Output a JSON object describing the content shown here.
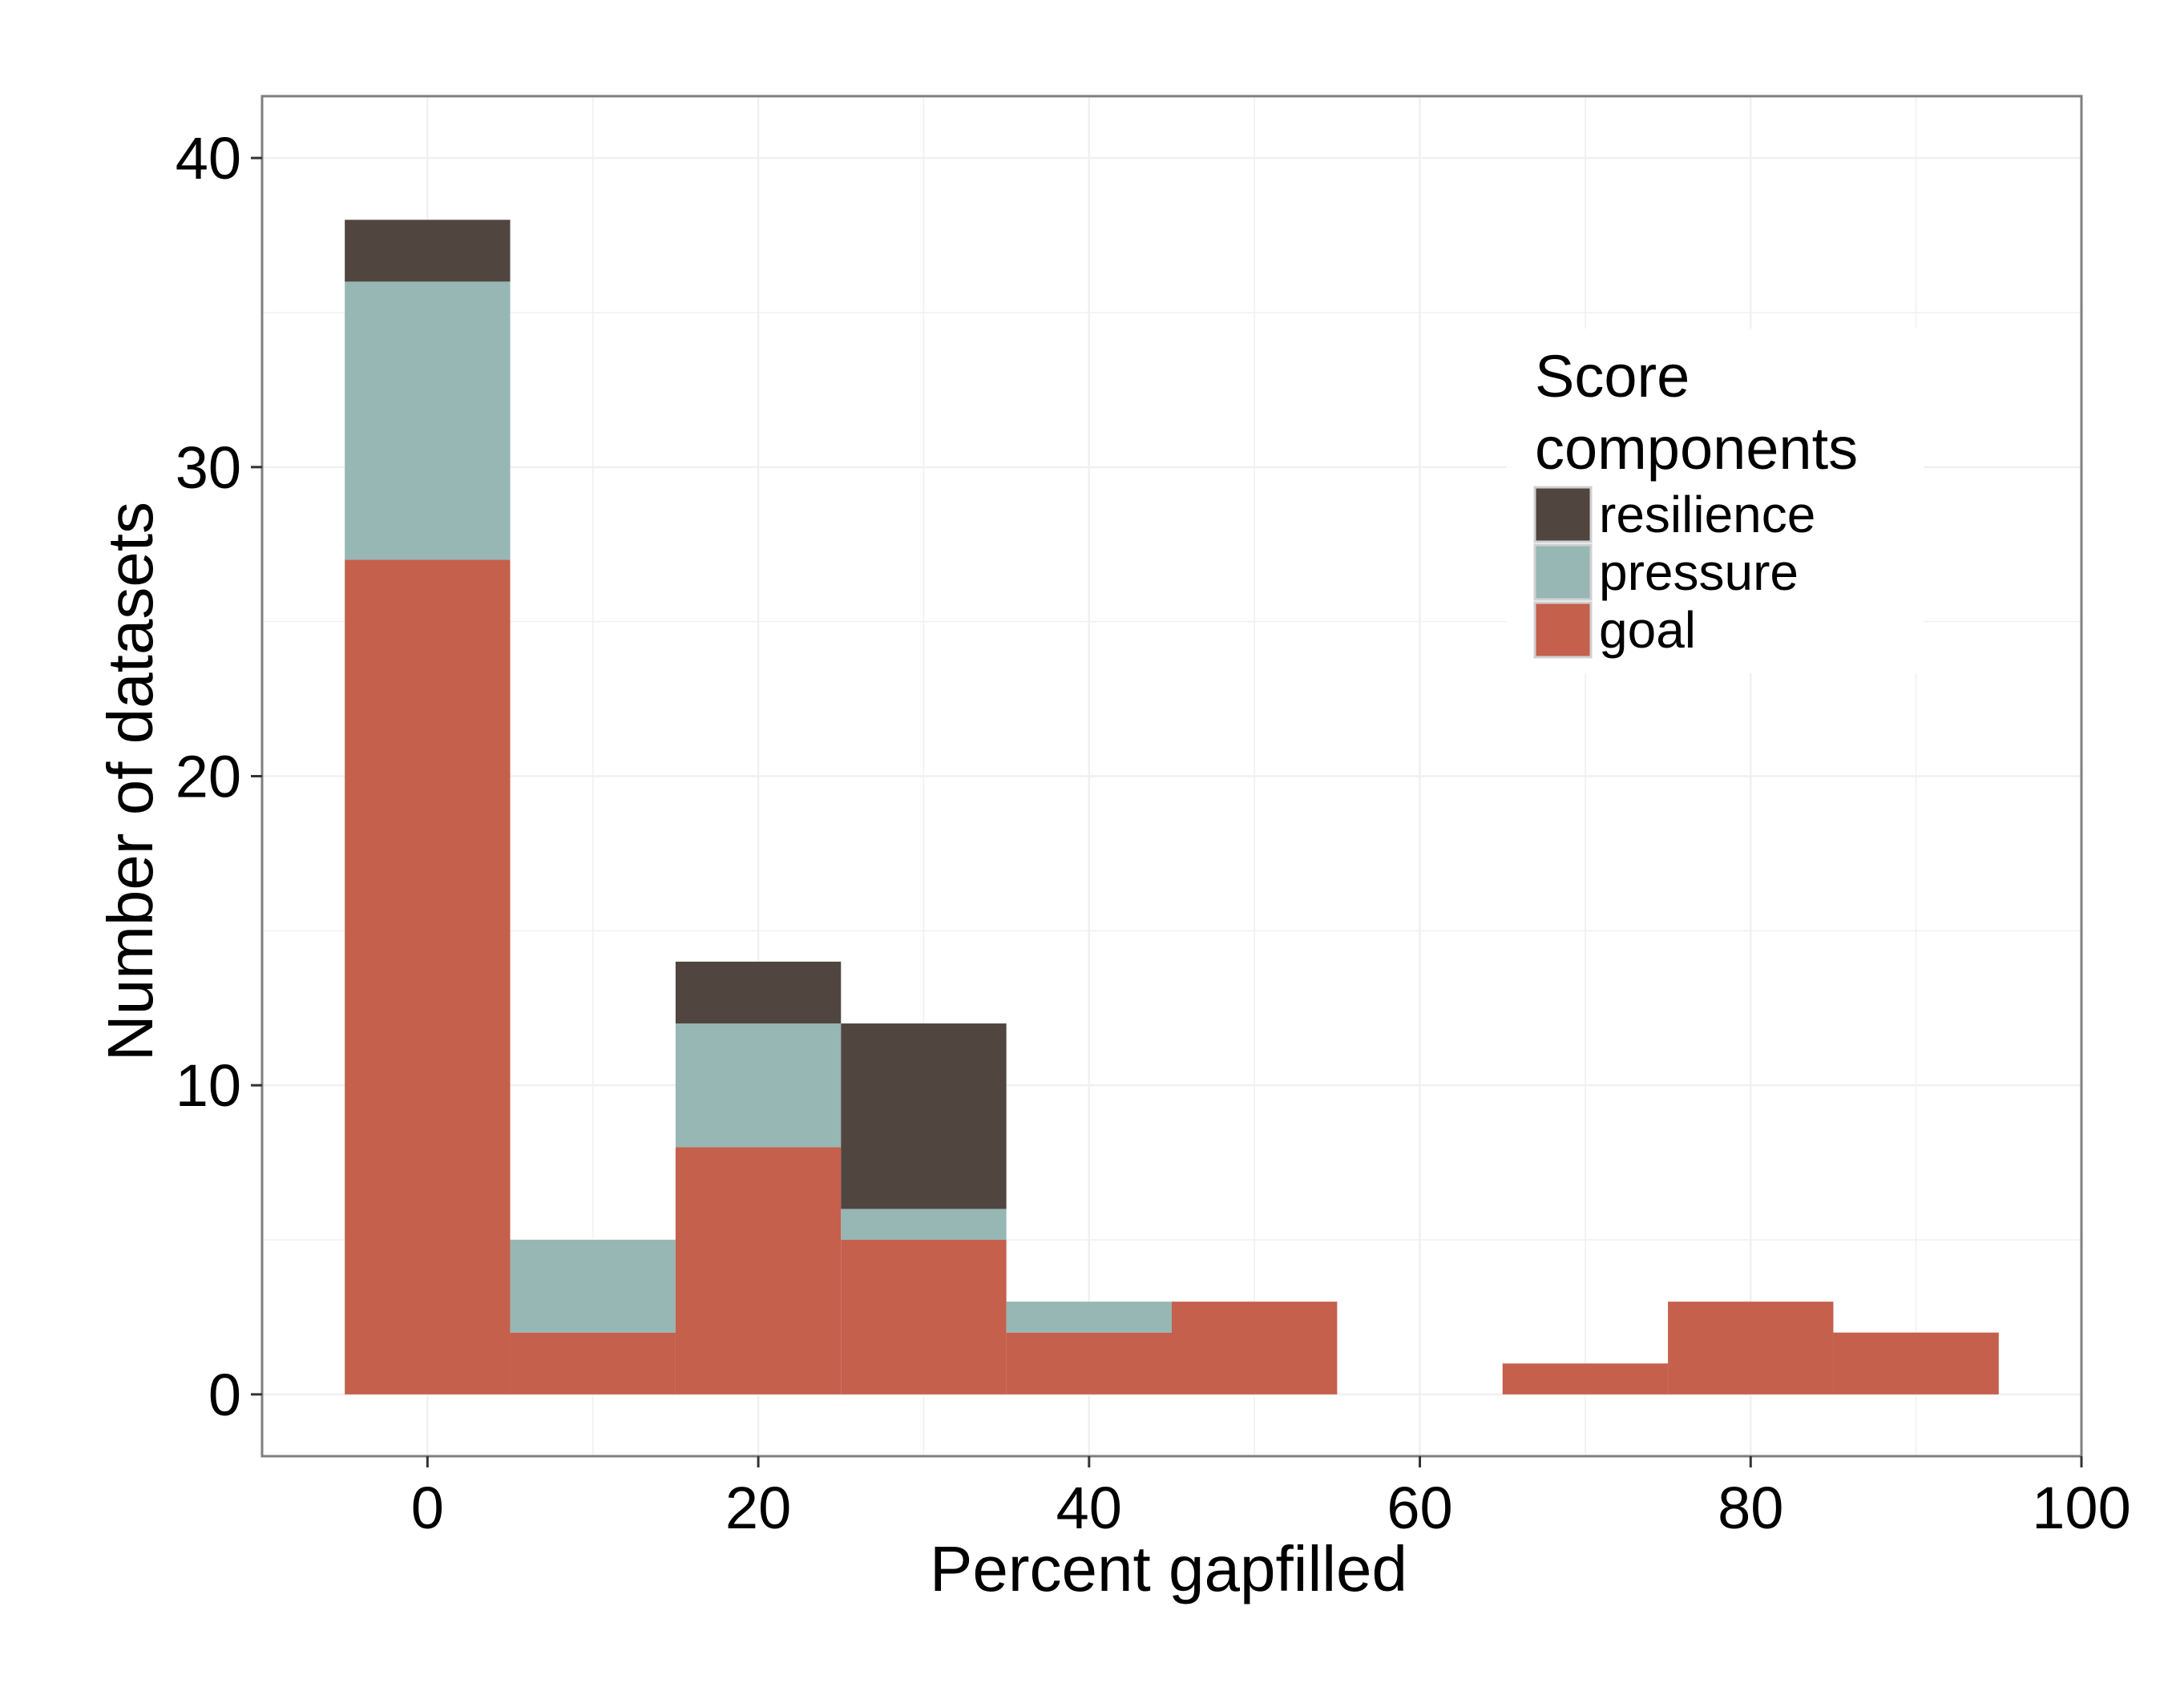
{
  "chart_data": {
    "type": "bar",
    "stacked": true,
    "xlabel": "Percent gapfilled",
    "ylabel": "Number of datasets",
    "xlim": [
      -10,
      100
    ],
    "ylim": [
      -2,
      42
    ],
    "bin_width": 10,
    "x_ticks": [
      0,
      20,
      40,
      60,
      80,
      100
    ],
    "y_ticks": [
      0,
      10,
      20,
      30,
      40
    ],
    "grid": true,
    "legend": {
      "title": "Score components",
      "position": "top-right",
      "entries": [
        "resilience",
        "pressure",
        "goal"
      ]
    },
    "x": [
      0,
      10,
      20,
      30,
      40,
      50,
      60,
      70,
      80,
      90
    ],
    "series": [
      {
        "name": "goal",
        "color": "#c4604c",
        "values": [
          27,
          2,
          8,
          5,
          2,
          3,
          0,
          1,
          3,
          2
        ]
      },
      {
        "name": "pressure",
        "color": "#96b7b4",
        "values": [
          9,
          3,
          4,
          1,
          1,
          0,
          0,
          0,
          0,
          0
        ]
      },
      {
        "name": "resilience",
        "color": "#514540",
        "values": [
          2,
          0,
          2,
          6,
          0,
          0,
          0,
          0,
          0,
          0
        ]
      }
    ]
  }
}
